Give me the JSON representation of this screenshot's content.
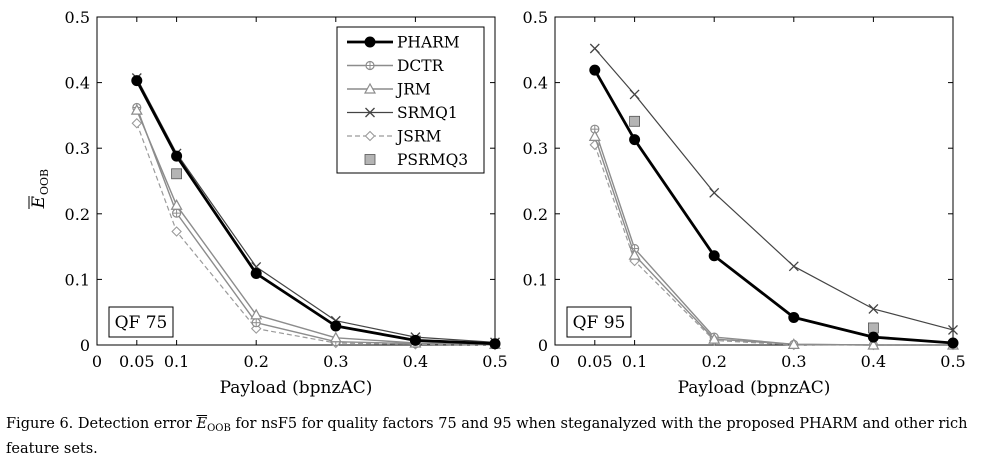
{
  "chart_data": [
    {
      "type": "line",
      "xlabel": "Payload (bpnzAC)",
      "ylabel": "E_OOB",
      "xlim": [
        0,
        0.5
      ],
      "ylim": [
        0,
        0.5
      ],
      "x_ticks": [
        "0",
        "0.05",
        "0.1",
        "0.2",
        "0.3",
        "0.4",
        "0.5"
      ],
      "y_ticks": [
        "0",
        "0.1",
        "0.2",
        "0.3",
        "0.4",
        "0.5"
      ],
      "annotation": "QF 75",
      "legend_position": "top-right",
      "grid": false,
      "series": [
        {
          "name": "PHARM",
          "color": "#000000",
          "marker": "circle-filled",
          "dash": "solid",
          "width": 2.8,
          "x": [
            0.05,
            0.1,
            0.2,
            0.3,
            0.4,
            0.5
          ],
          "y": [
            0.403,
            0.288,
            0.109,
            0.029,
            0.007,
            0.002
          ]
        },
        {
          "name": "DCTR",
          "color": "#8c8c8c",
          "marker": "circle-plus",
          "dash": "solid",
          "width": 1.4,
          "x": [
            0.05,
            0.1,
            0.2,
            0.3,
            0.4,
            0.5
          ],
          "y": [
            0.362,
            0.201,
            0.034,
            0.005,
            0.002,
            0.001
          ]
        },
        {
          "name": "JRM",
          "color": "#8c8c8c",
          "marker": "triangle",
          "dash": "solid",
          "width": 1.4,
          "x": [
            0.05,
            0.1,
            0.2,
            0.3,
            0.4,
            0.5
          ],
          "y": [
            0.358,
            0.213,
            0.046,
            0.011,
            0.003,
            0.001
          ]
        },
        {
          "name": "SRMQ1",
          "color": "#444444",
          "marker": "cross",
          "dash": "solid",
          "width": 1.2,
          "x": [
            0.05,
            0.1,
            0.2,
            0.3,
            0.4,
            0.5
          ],
          "y": [
            0.407,
            0.292,
            0.119,
            0.037,
            0.012,
            0.004
          ]
        },
        {
          "name": "JSRM",
          "color": "#9a9a9a",
          "marker": "diamond",
          "dash": "dashed",
          "width": 1.2,
          "x": [
            0.05,
            0.1,
            0.2,
            0.3,
            0.4,
            0.5
          ],
          "y": [
            0.338,
            0.173,
            0.025,
            0.003,
            0.001,
            0.0
          ]
        },
        {
          "name": "PSRMQ3",
          "color": "#b4b4b4",
          "marker": "square",
          "dash": "none",
          "width": 0,
          "x": [
            0.1,
            0.4
          ],
          "y": [
            0.261,
            0.006
          ]
        }
      ]
    },
    {
      "type": "line",
      "xlabel": "Payload (bpnzAC)",
      "ylabel": "",
      "xlim": [
        0,
        0.5
      ],
      "ylim": [
        0,
        0.5
      ],
      "x_ticks": [
        "0",
        "0.05",
        "0.1",
        "0.2",
        "0.3",
        "0.4",
        "0.5"
      ],
      "y_ticks": [
        "0",
        "0.1",
        "0.2",
        "0.3",
        "0.4",
        "0.5"
      ],
      "annotation": "QF 95",
      "grid": false,
      "series": [
        {
          "name": "PHARM",
          "color": "#000000",
          "marker": "circle-filled",
          "dash": "solid",
          "width": 2.8,
          "x": [
            0.05,
            0.1,
            0.2,
            0.3,
            0.4,
            0.5
          ],
          "y": [
            0.419,
            0.313,
            0.136,
            0.042,
            0.012,
            0.003
          ]
        },
        {
          "name": "DCTR",
          "color": "#8c8c8c",
          "marker": "circle-plus",
          "dash": "solid",
          "width": 1.4,
          "x": [
            0.05,
            0.1,
            0.2,
            0.3,
            0.4,
            0.5
          ],
          "y": [
            0.329,
            0.147,
            0.012,
            0.001,
            0.0,
            0.0
          ]
        },
        {
          "name": "JRM",
          "color": "#8c8c8c",
          "marker": "triangle",
          "dash": "solid",
          "width": 1.4,
          "x": [
            0.05,
            0.1,
            0.2,
            0.3,
            0.4,
            0.5
          ],
          "y": [
            0.318,
            0.137,
            0.009,
            0.001,
            0.0,
            0.0
          ]
        },
        {
          "name": "SRMQ1",
          "color": "#444444",
          "marker": "cross",
          "dash": "solid",
          "width": 1.2,
          "x": [
            0.05,
            0.1,
            0.2,
            0.3,
            0.4,
            0.5
          ],
          "y": [
            0.452,
            0.382,
            0.232,
            0.12,
            0.055,
            0.023
          ]
        },
        {
          "name": "JSRM",
          "color": "#9a9a9a",
          "marker": "diamond",
          "dash": "dashed",
          "width": 1.2,
          "x": [
            0.05,
            0.1,
            0.2,
            0.3,
            0.4,
            0.5
          ],
          "y": [
            0.305,
            0.128,
            0.007,
            0.0,
            0.0,
            0.0
          ]
        },
        {
          "name": "PSRMQ3",
          "color": "#b4b4b4",
          "marker": "square",
          "dash": "none",
          "width": 0,
          "x": [
            0.1,
            0.4
          ],
          "y": [
            0.341,
            0.026
          ]
        }
      ]
    }
  ],
  "legend": [
    "PHARM",
    "DCTR",
    "JRM",
    "SRMQ1",
    "JSRM",
    "PSRMQ3"
  ],
  "ylabel_symbol": "E",
  "ylabel_subscript": "OOB",
  "caption": {
    "prefix": "Figure 6. Detection error ",
    "symbol": "E",
    "subscript": "OOB",
    "suffix": " for nsF5 for quality factors 75 and 95 when steganalyzed with the proposed PHARM and other rich feature sets."
  }
}
